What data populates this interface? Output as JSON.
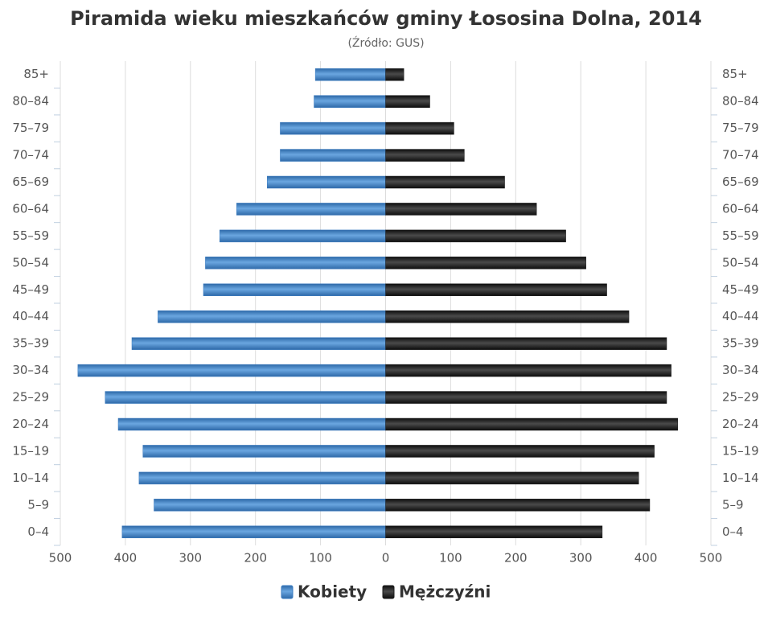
{
  "chart_data": {
    "type": "pyramid",
    "title": "Piramida wieku mieszkańców gminy Łososina Dolna, 2014",
    "subtitle": "(Źródło: GUS)",
    "categories": [
      "0–4",
      "5–9",
      "10–14",
      "15–19",
      "20–24",
      "25–29",
      "30–34",
      "35–39",
      "40–44",
      "45–49",
      "50–54",
      "55–59",
      "60–64",
      "65–69",
      "70–74",
      "75–79",
      "80–84",
      "85+"
    ],
    "series": [
      {
        "name": "Kobiety",
        "color": "#3a7bc0",
        "values": [
          -405,
          -356,
          -379,
          -373,
          -411,
          -431,
          -473,
          -390,
          -350,
          -280,
          -277,
          -255,
          -229,
          -182,
          -162,
          -162,
          -110,
          -108
        ]
      },
      {
        "name": "Mężczyźni",
        "color": "#1c1c1c",
        "values": [
          333,
          406,
          389,
          413,
          449,
          432,
          439,
          432,
          374,
          340,
          308,
          277,
          232,
          183,
          121,
          105,
          68,
          28
        ]
      }
    ],
    "xlim": [
      -500,
      500
    ],
    "xticks": [
      {
        "value": -500,
        "label": "500"
      },
      {
        "value": -400,
        "label": "400"
      },
      {
        "value": -300,
        "label": "300"
      },
      {
        "value": -200,
        "label": "200"
      },
      {
        "value": -100,
        "label": "100"
      },
      0,
      100,
      200,
      300,
      400,
      500
    ],
    "grid": true,
    "legend": "bottom"
  }
}
